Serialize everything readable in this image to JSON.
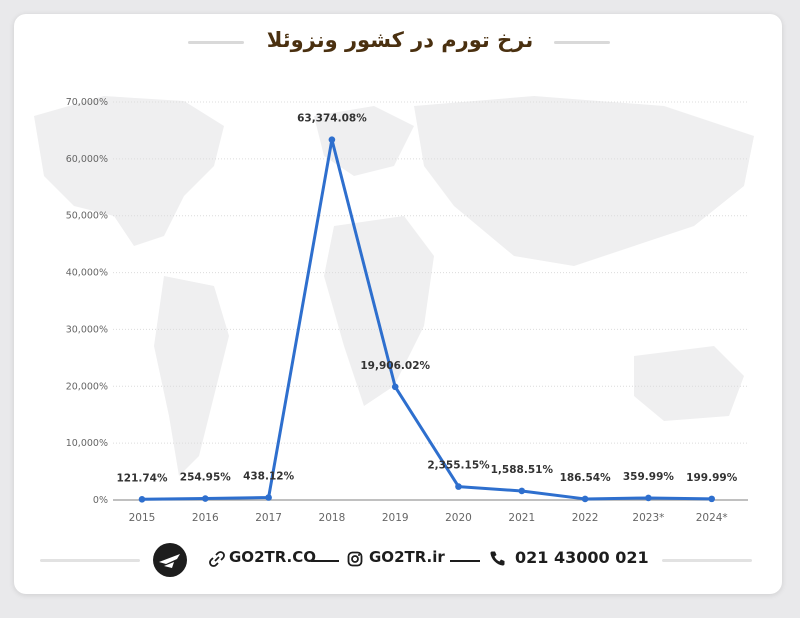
{
  "title": "نرخ تورم در کشور ونزوئلا",
  "footer": {
    "site": "GO2TR.CO",
    "instagram": "GO2TR.ir",
    "phone": "021 43000 021"
  },
  "icons": [
    "logo-icon",
    "link-icon",
    "instagram-icon",
    "phone-icon"
  ],
  "colors": {
    "line": "#2e6fce",
    "title": "#4a3010"
  },
  "chart_data": {
    "type": "line",
    "categories": [
      "2015",
      "2016",
      "2017",
      "2018",
      "2019",
      "2020",
      "2021",
      "2022",
      "2023*",
      "2024*"
    ],
    "values": [
      121.74,
      254.95,
      438.12,
      63374.08,
      19906.02,
      2355.15,
      1588.51,
      186.54,
      359.99,
      199.99
    ],
    "data_labels": [
      "121.74%",
      "254.95%",
      "438.12%",
      "63,374.08%",
      "19,906.02%",
      "2,355.15%",
      "1,588.51%",
      "186.54%",
      "359.99%",
      "199.99%"
    ],
    "yticks": [
      "0%",
      "10,000%",
      "20,000%",
      "30,000%",
      "40,000%",
      "50,000%",
      "60,000%",
      "70,000%"
    ],
    "ylim": [
      0,
      70000
    ],
    "grid": true,
    "xlabel": "",
    "ylabel": ""
  }
}
